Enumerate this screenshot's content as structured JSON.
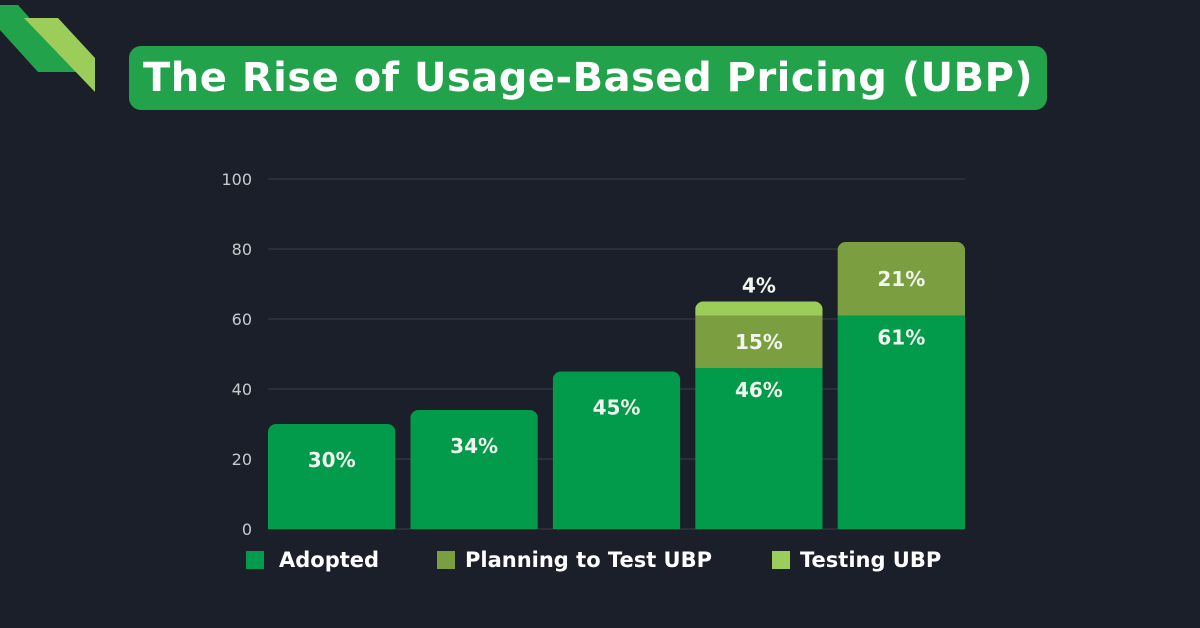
{
  "title": "The Rise of Usage-Based Pricing (UBP)",
  "colors": {
    "background": "#1b1f29",
    "title_bg": "#22a24b",
    "adopted": "#029a4b",
    "planning": "#7a9e40",
    "testing": "#9ccc5a",
    "logo_dark": "#22a24b",
    "logo_light": "#9ccc5a"
  },
  "chart_data": {
    "type": "bar",
    "stacked": true,
    "title": "The Rise of Usage-Based Pricing (UBP)",
    "xlabel": "",
    "ylabel": "",
    "ylim": [
      0,
      100
    ],
    "yticks": [
      0,
      20,
      40,
      60,
      80,
      100
    ],
    "grid": true,
    "legend_position": "bottom",
    "categories": [
      "",
      "",
      "",
      "",
      ""
    ],
    "series": [
      {
        "name": "Adopted",
        "color": "#029a4b",
        "values": [
          30,
          34,
          45,
          46,
          61
        ],
        "labels": [
          "30%",
          "34%",
          "45%",
          "46%",
          "61%"
        ]
      },
      {
        "name": "Planning to Test UBP",
        "color": "#7a9e40",
        "values": [
          0,
          0,
          0,
          15,
          21
        ],
        "labels": [
          "",
          "",
          "",
          "15%",
          "21%"
        ]
      },
      {
        "name": "Testing UBP",
        "color": "#9ccc5a",
        "values": [
          0,
          0,
          0,
          4,
          0
        ],
        "labels": [
          "",
          "",
          "",
          "4%",
          ""
        ]
      }
    ]
  }
}
